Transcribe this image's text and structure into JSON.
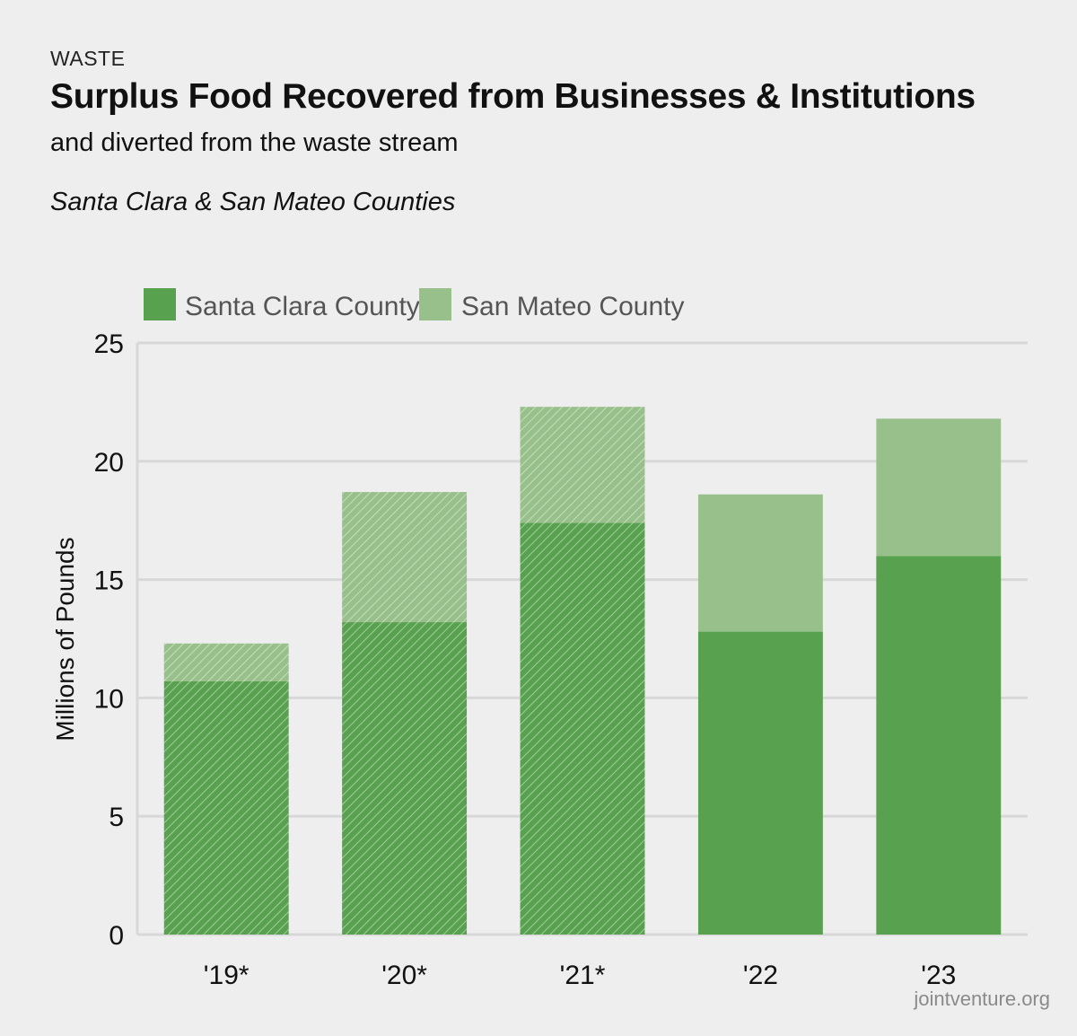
{
  "header": {
    "kicker": "WASTE",
    "title": "Surplus Food Recovered from Businesses & Institutions",
    "subtitle": "and diverted from the waste stream",
    "region": "Santa Clara & San Mateo Counties"
  },
  "footer": {
    "source": "jointventure.org"
  },
  "colors": {
    "santa_clara": "#58a14e",
    "san_mateo": "#98c08a",
    "gridline": "#d8d8d8",
    "hatch": "#ffffff"
  },
  "chart_data": {
    "type": "bar",
    "stacked": true,
    "categories": [
      "'19*",
      "'20*",
      "'21*",
      "'22",
      "'23"
    ],
    "hatched_categories": [
      "'19*",
      "'20*",
      "'21*"
    ],
    "series": [
      {
        "name": "Santa Clara County",
        "values": [
          10.7,
          13.2,
          17.4,
          12.8,
          16.0
        ]
      },
      {
        "name": "San Mateo County",
        "values": [
          1.6,
          5.5,
          4.9,
          5.8,
          5.8
        ]
      }
    ],
    "title": "Surplus Food Recovered from Businesses & Institutions",
    "xlabel": "",
    "ylabel": "Millions of Pounds",
    "ylim": [
      0,
      25
    ],
    "yticks": [
      0,
      5,
      10,
      15,
      20,
      25
    ],
    "grid": true,
    "legend": "top-left"
  }
}
